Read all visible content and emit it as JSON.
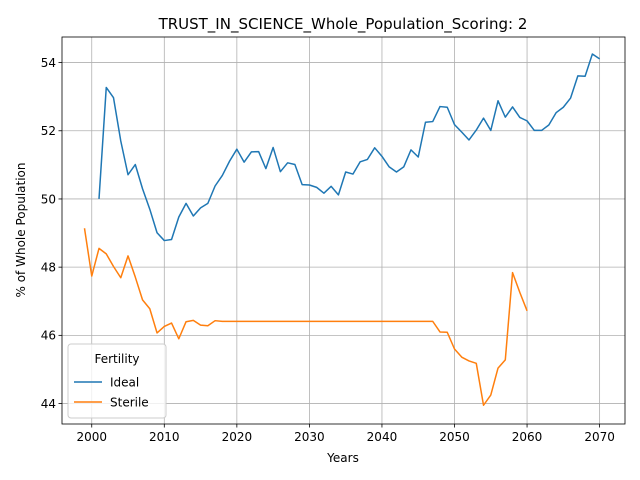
{
  "chart_data": {
    "type": "line",
    "title": "TRUST_IN_SCIENCE_Whole_Population_Scoring: 2",
    "xlabel": "Years",
    "ylabel": "% of Whole Population",
    "xlim": [
      1995.9,
      2073.5
    ],
    "ylim": [
      43.4,
      54.75
    ],
    "xticks": [
      2000,
      2010,
      2020,
      2030,
      2040,
      2050,
      2060,
      2070
    ],
    "yticks": [
      44,
      46,
      48,
      50,
      52,
      54
    ],
    "grid": true,
    "legend": {
      "title": "Fertility",
      "placement": "lower-left"
    },
    "series": [
      {
        "name": "Ideal",
        "color": "#1f77b4",
        "x": [
          2001,
          2002,
          2003,
          2004,
          2005,
          2006,
          2007,
          2008,
          2009,
          2010,
          2011,
          2012,
          2013,
          2014,
          2015,
          2016,
          2017,
          2018,
          2019,
          2020,
          2021,
          2022,
          2023,
          2024,
          2025,
          2026,
          2027,
          2028,
          2029,
          2030,
          2031,
          2032,
          2033,
          2034,
          2035,
          2036,
          2037,
          2038,
          2039,
          2040,
          2041,
          2042,
          2043,
          2044,
          2045,
          2046,
          2047,
          2048,
          2049,
          2050,
          2051,
          2052,
          2053,
          2054,
          2055,
          2056,
          2057,
          2058,
          2059,
          2060,
          2061,
          2062,
          2063,
          2064,
          2065,
          2066,
          2067,
          2068,
          2069,
          2070
        ],
        "values": [
          50.0,
          53.27,
          52.97,
          51.7,
          50.71,
          51.01,
          50.3,
          49.7,
          49.01,
          48.78,
          48.81,
          49.47,
          49.87,
          49.5,
          49.74,
          49.87,
          50.38,
          50.69,
          51.11,
          51.46,
          51.08,
          51.38,
          51.39,
          50.89,
          51.51,
          50.8,
          51.06,
          51.01,
          50.42,
          50.41,
          50.34,
          50.17,
          50.37,
          50.12,
          50.79,
          50.73,
          51.09,
          51.16,
          51.5,
          51.25,
          50.94,
          50.79,
          50.94,
          51.44,
          51.23,
          52.25,
          52.27,
          52.71,
          52.69,
          52.18,
          51.96,
          51.73,
          52.02,
          52.37,
          52.01,
          52.88,
          52.4,
          52.7,
          52.39,
          52.29,
          52.01,
          52.01,
          52.17,
          52.53,
          52.69,
          52.96,
          53.61,
          53.6,
          54.25,
          54.11
        ]
      },
      {
        "name": "Sterile",
        "color": "#ff7f0e",
        "x": [
          1999,
          2000,
          2001,
          2002,
          2003,
          2004,
          2005,
          2006,
          2007,
          2008,
          2009,
          2010,
          2011,
          2012,
          2013,
          2014,
          2015,
          2016,
          2017,
          2018,
          2019,
          2020,
          2021,
          2022,
          2023,
          2024,
          2025,
          2026,
          2027,
          2028,
          2029,
          2030,
          2031,
          2032,
          2033,
          2034,
          2035,
          2036,
          2037,
          2038,
          2039,
          2040,
          2041,
          2042,
          2043,
          2044,
          2045,
          2046,
          2047,
          2048,
          2049,
          2050,
          2051,
          2052,
          2053,
          2054,
          2055,
          2056,
          2057,
          2058,
          2059,
          2060
        ],
        "values": [
          49.14,
          47.74,
          48.55,
          48.39,
          48.02,
          47.69,
          48.33,
          47.71,
          47.04,
          46.78,
          46.07,
          46.26,
          46.36,
          45.9,
          46.4,
          46.44,
          46.3,
          46.28,
          46.43,
          46.41,
          46.41,
          46.41,
          46.41,
          46.41,
          46.41,
          46.41,
          46.41,
          46.41,
          46.41,
          46.41,
          46.41,
          46.41,
          46.41,
          46.41,
          46.41,
          46.41,
          46.41,
          46.41,
          46.41,
          46.41,
          46.41,
          46.41,
          46.41,
          46.41,
          46.41,
          46.41,
          46.41,
          46.41,
          46.41,
          46.1,
          46.09,
          45.6,
          45.36,
          45.25,
          45.18,
          43.95,
          44.25,
          45.04,
          45.28,
          47.84,
          47.26,
          46.72
        ]
      }
    ]
  }
}
